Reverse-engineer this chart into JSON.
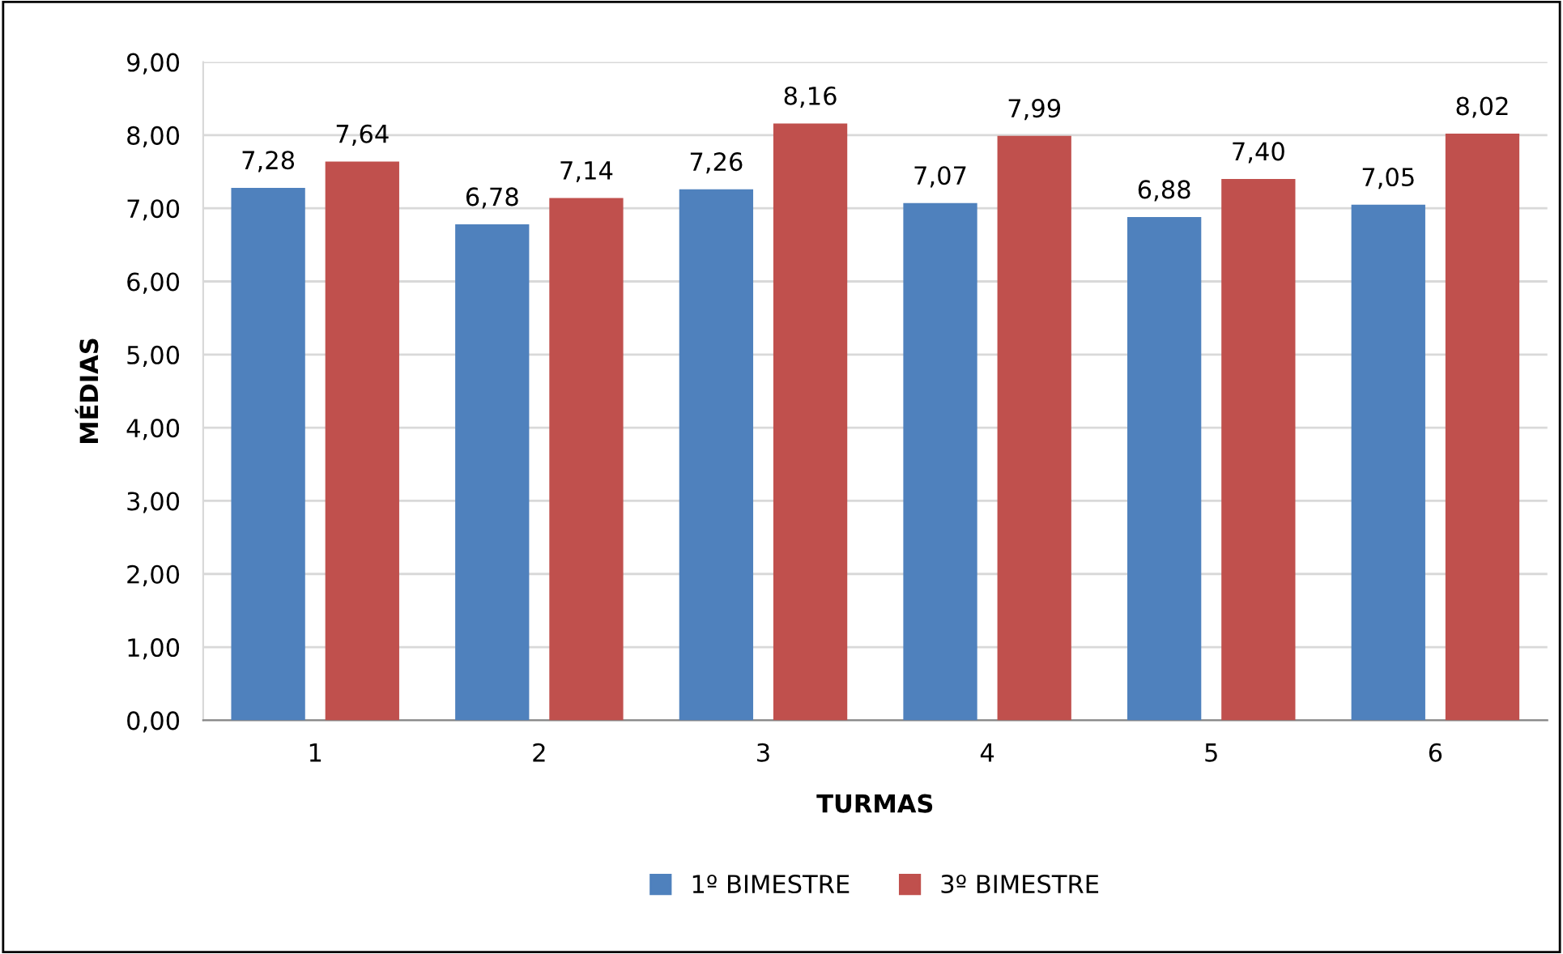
{
  "chart_data": {
    "type": "bar",
    "xlabel": "TURMAS",
    "ylabel": "MÉDIAS",
    "categories": [
      "1",
      "2",
      "3",
      "4",
      "5",
      "6"
    ],
    "series": [
      {
        "name": "1º BIMESTRE",
        "color": "#4f81bd",
        "values": [
          7.28,
          6.78,
          7.26,
          7.07,
          6.88,
          7.05
        ],
        "value_labels": [
          "7,28",
          "6,78",
          "7,26",
          "7,07",
          "6,88",
          "7,05"
        ]
      },
      {
        "name": "3º BIMESTRE",
        "color": "#c0504d",
        "values": [
          7.64,
          7.14,
          8.16,
          7.99,
          7.4,
          8.02
        ],
        "value_labels": [
          "7,64",
          "7,14",
          "8,16",
          "7,99",
          "7,40",
          "8,02"
        ]
      }
    ],
    "ylim": [
      0,
      9
    ],
    "yticks": [
      {
        "value": 0,
        "label": "0,00"
      },
      {
        "value": 1,
        "label": "1,00"
      },
      {
        "value": 2,
        "label": "2,00"
      },
      {
        "value": 3,
        "label": "3,00"
      },
      {
        "value": 4,
        "label": "4,00"
      },
      {
        "value": 5,
        "label": "5,00"
      },
      {
        "value": 6,
        "label": "6,00"
      },
      {
        "value": 7,
        "label": "7,00"
      },
      {
        "value": 8,
        "label": "8,00"
      },
      {
        "value": 9,
        "label": "9,00"
      }
    ],
    "grid": "y",
    "legend": "bottom"
  }
}
